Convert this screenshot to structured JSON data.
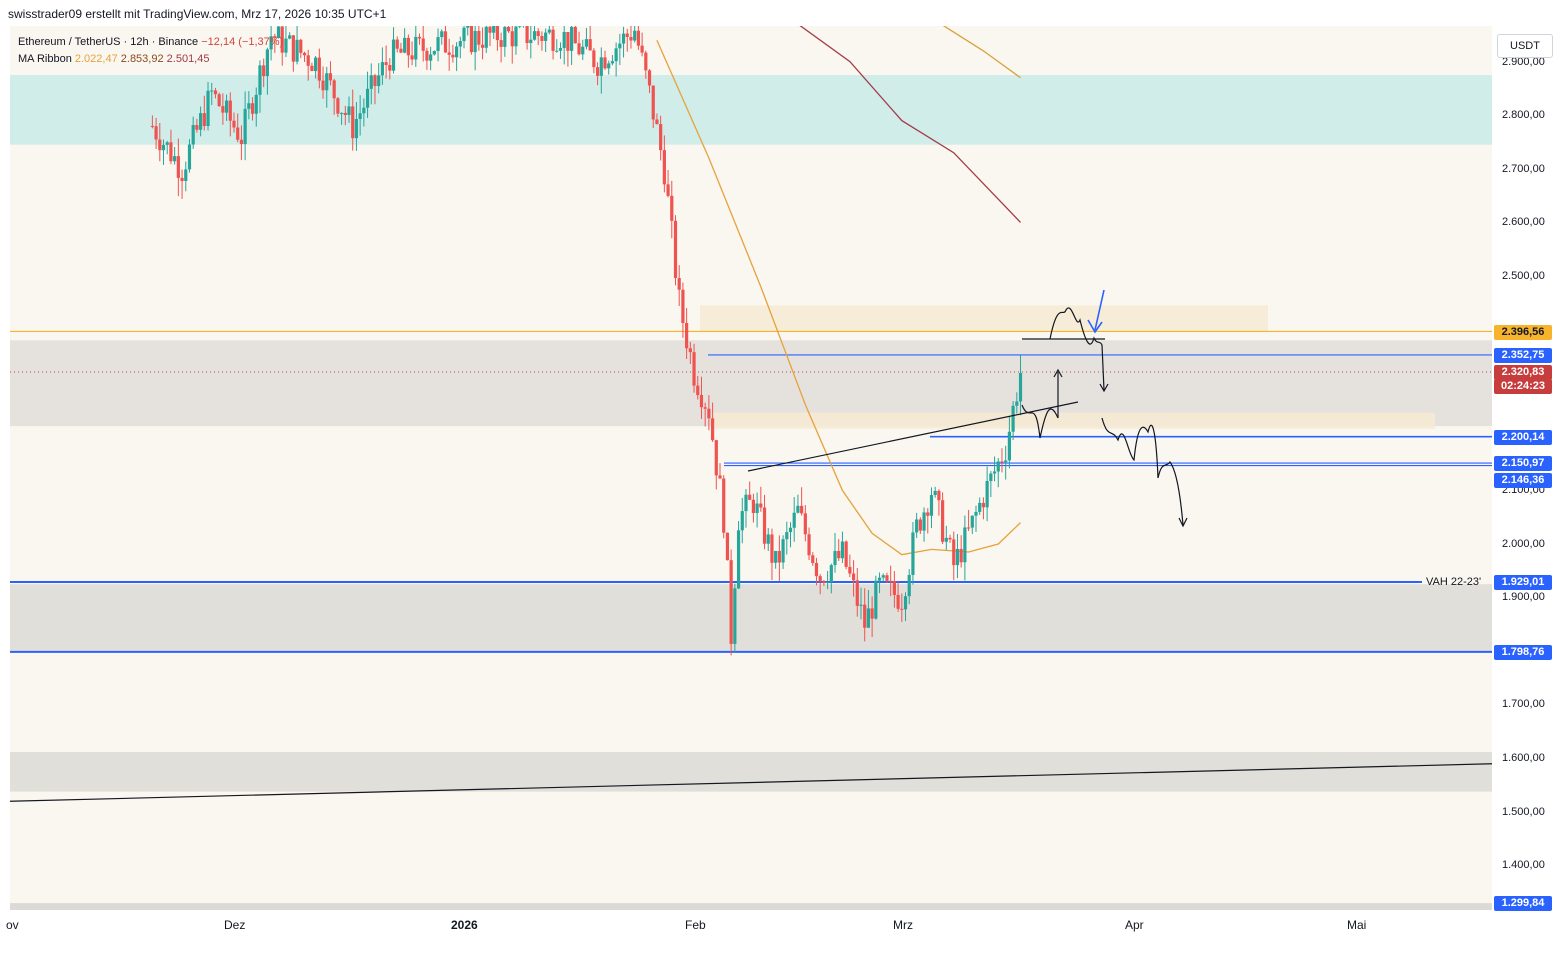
{
  "header": {
    "credit": "swisstrader09 erstellt mit TradingView.com, Mrz 17, 2026 10:35 UTC+1"
  },
  "legend": {
    "symbol": "Ethereum / TetherUS · 12h · Binance",
    "change": "−12,14 (−1,37%)",
    "ma_label": "MA Ribbon",
    "ma_values": [
      "2.022,47",
      "2.853,92",
      "2.501,45"
    ]
  },
  "price_axis": {
    "unit": "USDT",
    "ticks": [
      "2.900,00",
      "2.800,00",
      "2.700,00",
      "2.600,00",
      "2.500,00",
      "2.100,00",
      "2.000,00",
      "1.900,00",
      "1.700,00",
      "1.600,00",
      "1.500,00",
      "1.400,00"
    ],
    "tags": [
      {
        "label": "2.396,56",
        "style": "orange"
      },
      {
        "label": "2.352,75",
        "style": "blue"
      },
      {
        "label": "2.320,83",
        "style": "red"
      },
      {
        "label": "02:24:23",
        "style": "red"
      },
      {
        "label": "2.200,14",
        "style": "blue"
      },
      {
        "label": "2.150,97",
        "style": "blue"
      },
      {
        "label": "2.146,36",
        "style": "blue"
      },
      {
        "label": "1.929,01",
        "style": "blue"
      },
      {
        "label": "1.798,76",
        "style": "blue"
      },
      {
        "label": "1.299,84",
        "style": "blue"
      }
    ]
  },
  "time_axis": {
    "ticks": [
      "ov",
      "Dez",
      "2026",
      "Feb",
      "Mrz",
      "Apr",
      "Mai"
    ]
  },
  "annotations": {
    "vah_label": "VAH 22-23'"
  },
  "colors": {
    "up": "#26a69a",
    "down": "#ef5350",
    "level_line": "#2962ff",
    "resistance_orange": "#f7b32b",
    "ma_fast": "#e6a23c",
    "ma_slow": "#a23b45",
    "supply_zone": "#c8ebe9",
    "gray_zone": "#dcdad6",
    "beige_zone": "#f6ead2"
  },
  "chart_data": {
    "type": "candlestick",
    "symbol": "Ethereum / TetherUS",
    "timeframe": "12h",
    "exchange": "Binance",
    "ylim": [
      1280,
      2980
    ],
    "y_unit": "USDT",
    "x_range": [
      "2025-11-01",
      "2026-05-15"
    ],
    "price_levels": [
      2396.56,
      2352.75,
      2200.14,
      2150.97,
      2146.36,
      1929.01,
      1798.76,
      1299.84
    ],
    "last_price": 2320.83,
    "countdown": "02:24:23",
    "zones": [
      {
        "type": "supply",
        "from": 2745,
        "to": 2875
      },
      {
        "type": "resistance",
        "from": 2220,
        "to": 2380
      },
      {
        "type": "support",
        "from": 1800,
        "to": 1925
      },
      {
        "type": "support",
        "from": 1538,
        "to": 1612
      },
      {
        "type": "imbalance",
        "from": 2396,
        "to": 2445
      },
      {
        "type": "imbalance",
        "from": 2215,
        "to": 2245
      }
    ],
    "ma_ribbon": [
      2022.47,
      2853.92,
      2501.45
    ],
    "series_close": [
      {
        "date": "2025-11-20",
        "close": 2780
      },
      {
        "date": "2025-11-24",
        "close": 2700
      },
      {
        "date": "2025-11-28",
        "close": 2840
      },
      {
        "date": "2025-12-02",
        "close": 2760
      },
      {
        "date": "2025-12-06",
        "close": 2950
      },
      {
        "date": "2025-12-12",
        "close": 2900
      },
      {
        "date": "2025-12-17",
        "close": 2780
      },
      {
        "date": "2025-12-22",
        "close": 2910
      },
      {
        "date": "2025-12-28",
        "close": 2930
      },
      {
        "date": "2026-01-05",
        "close": 2950
      },
      {
        "date": "2026-01-14",
        "close": 2950
      },
      {
        "date": "2026-01-19",
        "close": 2900
      },
      {
        "date": "2026-01-24",
        "close": 2960
      },
      {
        "date": "2026-01-26",
        "close": 2840
      },
      {
        "date": "2026-01-28",
        "close": 2700
      },
      {
        "date": "2026-01-30",
        "close": 2450
      },
      {
        "date": "2026-02-01",
        "close": 2320
      },
      {
        "date": "2026-02-03",
        "close": 2250
      },
      {
        "date": "2026-02-05",
        "close": 2050
      },
      {
        "date": "2026-02-06",
        "close": 1830
      },
      {
        "date": "2026-02-07",
        "close": 2050
      },
      {
        "date": "2026-02-09",
        "close": 2080
      },
      {
        "date": "2026-02-12",
        "close": 1960
      },
      {
        "date": "2026-02-15",
        "close": 2060
      },
      {
        "date": "2026-02-18",
        "close": 1940
      },
      {
        "date": "2026-02-21",
        "close": 1980
      },
      {
        "date": "2026-02-24",
        "close": 1850
      },
      {
        "date": "2026-02-26",
        "close": 1920
      },
      {
        "date": "2026-03-01",
        "close": 1900
      },
      {
        "date": "2026-03-03",
        "close": 2030
      },
      {
        "date": "2026-03-05",
        "close": 2100
      },
      {
        "date": "2026-03-08",
        "close": 1960
      },
      {
        "date": "2026-03-10",
        "close": 2020
      },
      {
        "date": "2026-03-12",
        "close": 2090
      },
      {
        "date": "2026-03-15",
        "close": 2180
      },
      {
        "date": "2026-03-17",
        "close": 2320.83
      }
    ]
  }
}
